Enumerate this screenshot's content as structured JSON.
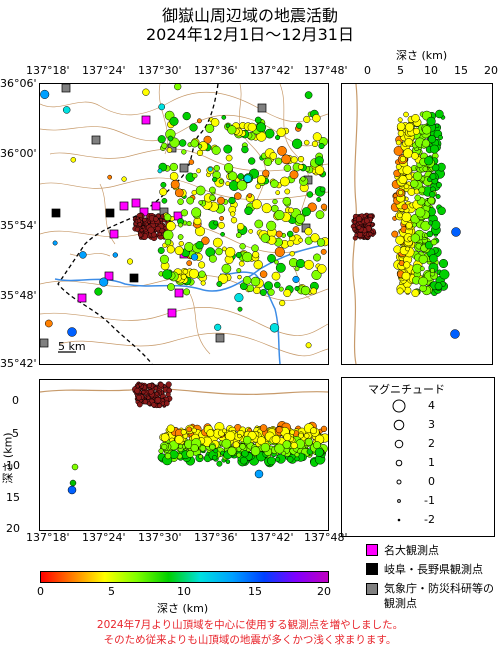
{
  "title": {
    "line1": "御嶽山周辺域の地震活動",
    "line2": "2024年12月1日～12月31日"
  },
  "map": {
    "lon_ticks": [
      "137°18'",
      "137°24'",
      "137°30'",
      "137°36'",
      "137°42'",
      "137°48'"
    ],
    "lat_ticks": [
      "36°06'",
      "36°00'",
      "35°54'",
      "35°48'",
      "35°42'"
    ],
    "scale_label": "5 km"
  },
  "depth_east": {
    "axis_label": "深さ (km)",
    "ticks": [
      "0",
      "5",
      "10",
      "15",
      "20"
    ]
  },
  "depth_south": {
    "axis_label": "深さ (km)",
    "ticks": [
      "0",
      "5",
      "10",
      "15",
      "20"
    ]
  },
  "magnitude_legend": {
    "title": "マグニチュード",
    "labels": [
      "4",
      "3",
      "2",
      "1",
      "0",
      "-1",
      "-2"
    ]
  },
  "colorbar": {
    "ticks": [
      "0",
      "5",
      "10",
      "15",
      "20"
    ],
    "label": "深さ (km)",
    "colors": [
      "#ff0000",
      "#ff8000",
      "#ffff00",
      "#80ff00",
      "#00d000",
      "#00c0ff",
      "#0040ff",
      "#8000ff",
      "#c000c0"
    ]
  },
  "station_legend": [
    {
      "label": "名大観測点",
      "color": "#ff00ff"
    },
    {
      "label": "岐阜・長野県観測点",
      "color": "#000000"
    },
    {
      "label": "気象庁・防災科研等の観測点",
      "color": "#808080"
    }
  ],
  "notes": [
    "2024年7月より山頂域を中心に使用する観測点を増やしました。",
    "そのため従来よりも山頂域の地震が多くかつ浅く求まります。"
  ]
}
